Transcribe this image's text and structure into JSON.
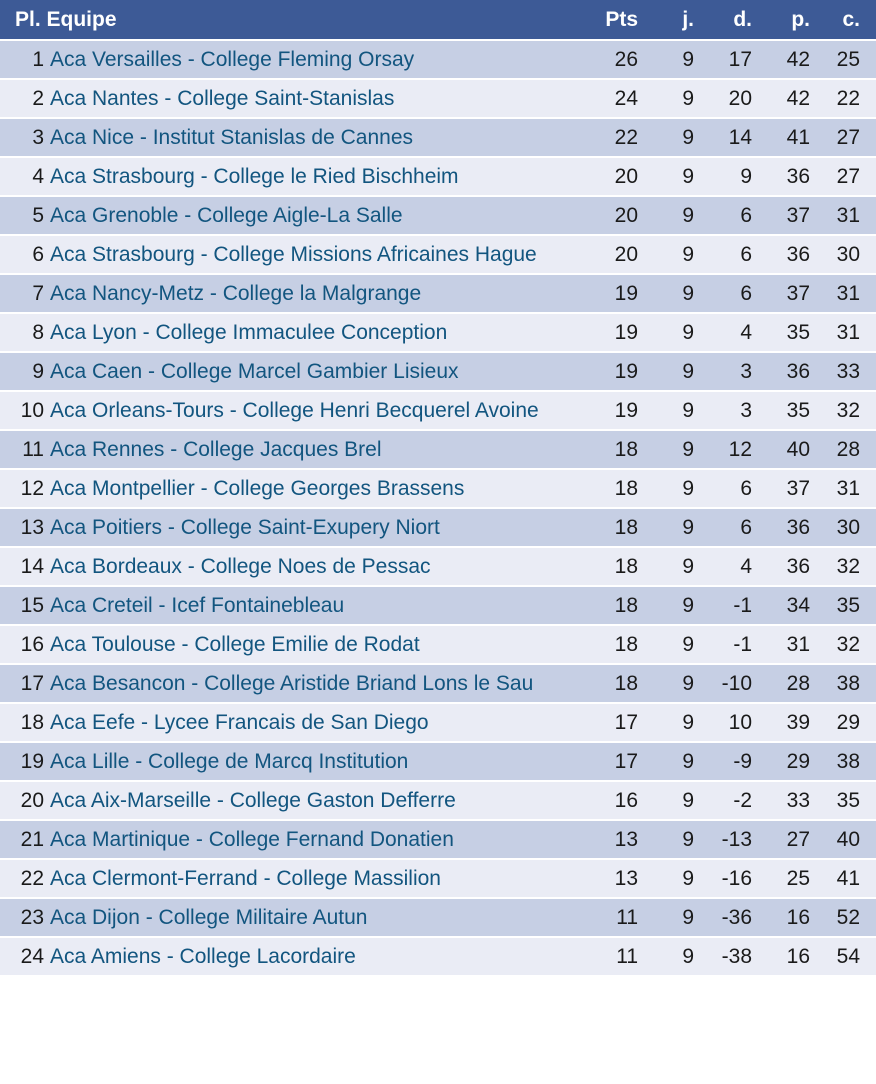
{
  "colors": {
    "header_bg": "#3d5a96",
    "header_text": "#ffffff",
    "row_odd_bg": "#c6cfe4",
    "row_even_bg": "#eaecf5",
    "team_link": "#12557f",
    "number_text": "#1a1a1a",
    "separator": "#ffffff"
  },
  "table": {
    "headers": [
      "Pl. Equipe",
      "Pts",
      "j.",
      "d.",
      "p.",
      "c."
    ],
    "rows": [
      {
        "pl": 1,
        "equipe": "Aca Versailles - College Fleming Orsay",
        "pts": 26,
        "j": 9,
        "d": 17,
        "p": 42,
        "c": 25
      },
      {
        "pl": 2,
        "equipe": "Aca Nantes - College Saint-Stanislas",
        "pts": 24,
        "j": 9,
        "d": 20,
        "p": 42,
        "c": 22
      },
      {
        "pl": 3,
        "equipe": "Aca Nice - Institut Stanislas de Cannes",
        "pts": 22,
        "j": 9,
        "d": 14,
        "p": 41,
        "c": 27
      },
      {
        "pl": 4,
        "equipe": "Aca Strasbourg - College le Ried Bischheim",
        "pts": 20,
        "j": 9,
        "d": 9,
        "p": 36,
        "c": 27
      },
      {
        "pl": 5,
        "equipe": "Aca Grenoble - College Aigle-La Salle",
        "pts": 20,
        "j": 9,
        "d": 6,
        "p": 37,
        "c": 31
      },
      {
        "pl": 6,
        "equipe": "Aca Strasbourg - College Missions Africaines Hague",
        "pts": 20,
        "j": 9,
        "d": 6,
        "p": 36,
        "c": 30
      },
      {
        "pl": 7,
        "equipe": "Aca Nancy-Metz - College la Malgrange",
        "pts": 19,
        "j": 9,
        "d": 6,
        "p": 37,
        "c": 31
      },
      {
        "pl": 8,
        "equipe": "Aca Lyon - College Immaculee Conception",
        "pts": 19,
        "j": 9,
        "d": 4,
        "p": 35,
        "c": 31
      },
      {
        "pl": 9,
        "equipe": "Aca Caen - College Marcel Gambier Lisieux",
        "pts": 19,
        "j": 9,
        "d": 3,
        "p": 36,
        "c": 33
      },
      {
        "pl": 10,
        "equipe": "Aca Orleans-Tours - College Henri Becquerel Avoine",
        "pts": 19,
        "j": 9,
        "d": 3,
        "p": 35,
        "c": 32
      },
      {
        "pl": 11,
        "equipe": "Aca Rennes - College Jacques Brel",
        "pts": 18,
        "j": 9,
        "d": 12,
        "p": 40,
        "c": 28
      },
      {
        "pl": 12,
        "equipe": "Aca Montpellier - College Georges Brassens",
        "pts": 18,
        "j": 9,
        "d": 6,
        "p": 37,
        "c": 31
      },
      {
        "pl": 13,
        "equipe": "Aca Poitiers - College Saint-Exupery Niort",
        "pts": 18,
        "j": 9,
        "d": 6,
        "p": 36,
        "c": 30
      },
      {
        "pl": 14,
        "equipe": "Aca Bordeaux - College Noes de Pessac",
        "pts": 18,
        "j": 9,
        "d": 4,
        "p": 36,
        "c": 32
      },
      {
        "pl": 15,
        "equipe": "Aca Creteil - Icef Fontainebleau",
        "pts": 18,
        "j": 9,
        "d": -1,
        "p": 34,
        "c": 35
      },
      {
        "pl": 16,
        "equipe": "Aca Toulouse - College Emilie de Rodat",
        "pts": 18,
        "j": 9,
        "d": -1,
        "p": 31,
        "c": 32
      },
      {
        "pl": 17,
        "equipe": "Aca Besancon - College Aristide Briand Lons le Sau",
        "pts": 18,
        "j": 9,
        "d": -10,
        "p": 28,
        "c": 38
      },
      {
        "pl": 18,
        "equipe": "Aca Eefe - Lycee Francais de San Diego",
        "pts": 17,
        "j": 9,
        "d": 10,
        "p": 39,
        "c": 29
      },
      {
        "pl": 19,
        "equipe": "Aca Lille - College de Marcq Institution",
        "pts": 17,
        "j": 9,
        "d": -9,
        "p": 29,
        "c": 38
      },
      {
        "pl": 20,
        "equipe": "Aca Aix-Marseille - College Gaston Defferre",
        "pts": 16,
        "j": 9,
        "d": -2,
        "p": 33,
        "c": 35
      },
      {
        "pl": 21,
        "equipe": "Aca Martinique - College Fernand Donatien",
        "pts": 13,
        "j": 9,
        "d": -13,
        "p": 27,
        "c": 40
      },
      {
        "pl": 22,
        "equipe": "Aca Clermont-Ferrand - College Massilion",
        "pts": 13,
        "j": 9,
        "d": -16,
        "p": 25,
        "c": 41
      },
      {
        "pl": 23,
        "equipe": "Aca Dijon - College Militaire Autun",
        "pts": 11,
        "j": 9,
        "d": -36,
        "p": 16,
        "c": 52
      },
      {
        "pl": 24,
        "equipe": "Aca Amiens - College Lacordaire",
        "pts": 11,
        "j": 9,
        "d": -38,
        "p": 16,
        "c": 54
      }
    ]
  }
}
